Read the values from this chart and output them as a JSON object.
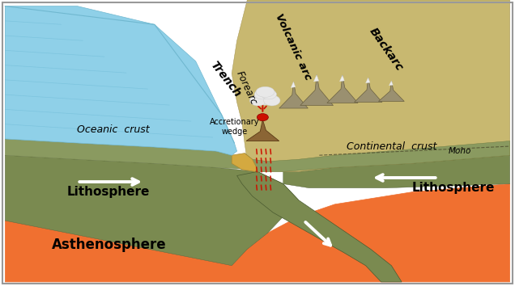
{
  "bg_color": "#ffffff",
  "ocean_color": "#8fd0e8",
  "ocean_line_color": "#6ab8d4",
  "oceanic_crust_color": "#8a9a60",
  "lithosphere_color": "#7a8a50",
  "asthenosphere_color": "#f07030",
  "accretionary_wedge_color": "#d4a940",
  "continental_surface_color": "#c8b870",
  "continental_dark_color": "#8a7a48",
  "subducting_slab_color": "#7a8a50",
  "trench_fill": "#6a7a40",
  "volcano_cone_color": "#8b6535",
  "lava_color": "#cc1100",
  "cloud_color": "#e8e8e8",
  "cloud_edge": "#cccccc",
  "moho_line_color": "#555533",
  "border_color": "#999999",
  "labels": {
    "oceanic_crust": "Oceanic  crust",
    "continental_crust": "Continental  crust",
    "lithosphere_left": "Lithosphere",
    "lithosphere_right": "Lithosphere",
    "asthenosphere": "Asthenosphere",
    "trench": "Trench",
    "forearc": "Forearc",
    "volcanic_arc": "Volcanic arc",
    "backarc": "Backarc",
    "accretionary_wedge": "Accretionary\nwedge",
    "moho": "Moho"
  }
}
